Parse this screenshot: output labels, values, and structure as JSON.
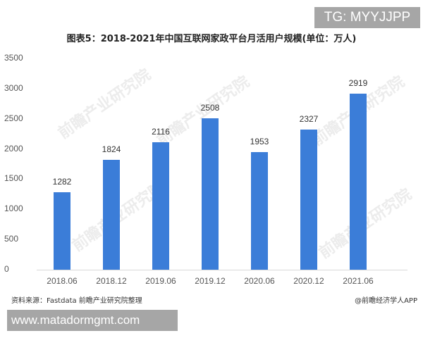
{
  "overlay": {
    "tg_badge": "TG: MYYJJPP",
    "url_badge": "www.matadormgmt.com"
  },
  "watermark": "前瞻产业研究院",
  "chart_data": {
    "type": "bar",
    "title": "图表5：2018-2021年中国互联网家政平台月活用户规模(单位：万人)",
    "xlabel": "",
    "ylabel": "",
    "ylim": [
      0,
      3500
    ],
    "yticks": [
      "0",
      "500",
      "1000",
      "1500",
      "2000",
      "2500",
      "3000",
      "3500"
    ],
    "grid": false,
    "legend": null,
    "categories": [
      "2018.06",
      "2018.12",
      "2019.06",
      "2019.12",
      "2020.06",
      "2020.12",
      "2021.06"
    ],
    "values": [
      1282,
      1824,
      2116,
      2508,
      1953,
      2327,
      2919
    ],
    "value_labels": [
      "1282",
      "1824",
      "2116",
      "2508",
      "1953",
      "2327",
      "2919"
    ],
    "bar_color": "#3b7dd8",
    "unit": "万人"
  },
  "footer": {
    "source": "资料来源：Fastdata 前瞻产业研究院整理",
    "credit": "@前瞻经济学人APP"
  }
}
